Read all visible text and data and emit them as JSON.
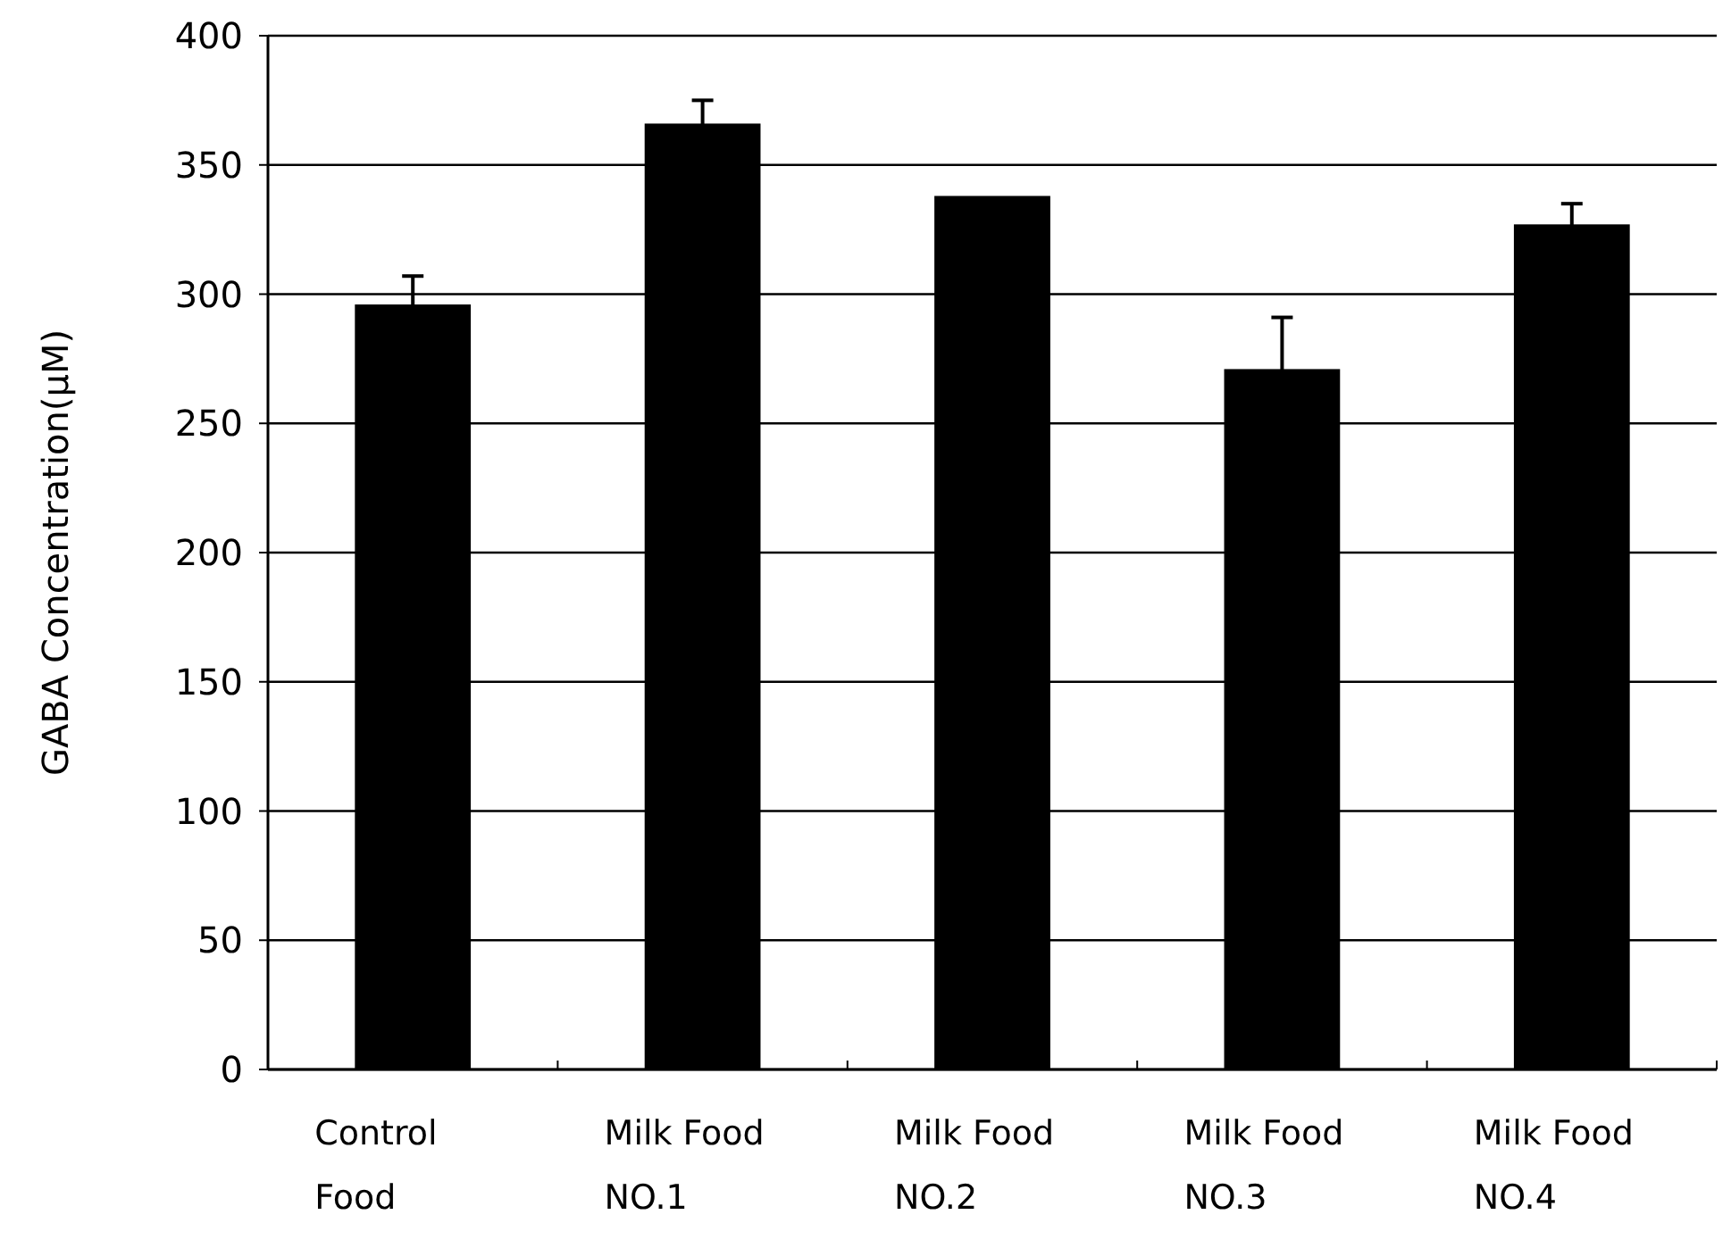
{
  "chart_data": {
    "type": "bar",
    "ylabel": "GABA Concentration(μM)",
    "categories": [
      "Control Food",
      "Milk Food NO.1",
      "Milk Food NO.2",
      "Milk Food NO.3",
      "Milk Food NO.4"
    ],
    "values": [
      296,
      366,
      338,
      271,
      327
    ],
    "errors": [
      11,
      9,
      null,
      20,
      8
    ],
    "color": "#000000",
    "ylim": [
      0,
      400
    ],
    "yticks": [
      0,
      50,
      100,
      150,
      200,
      250,
      300,
      350,
      400
    ],
    "grid": "y"
  }
}
